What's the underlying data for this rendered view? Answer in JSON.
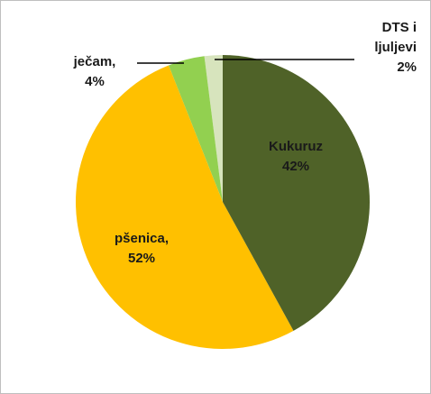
{
  "chart_data": {
    "type": "pie",
    "categories": [
      "Kukuruz",
      "pšenica,",
      "ječam,",
      "DTS i ljuljevi"
    ],
    "values": [
      42,
      52,
      4,
      2
    ],
    "value_labels": [
      "42%",
      "52%",
      "4%",
      "2%"
    ],
    "colors": [
      "#4f6228",
      "#ffc000",
      "#92d050",
      "#d7e4bd"
    ]
  }
}
